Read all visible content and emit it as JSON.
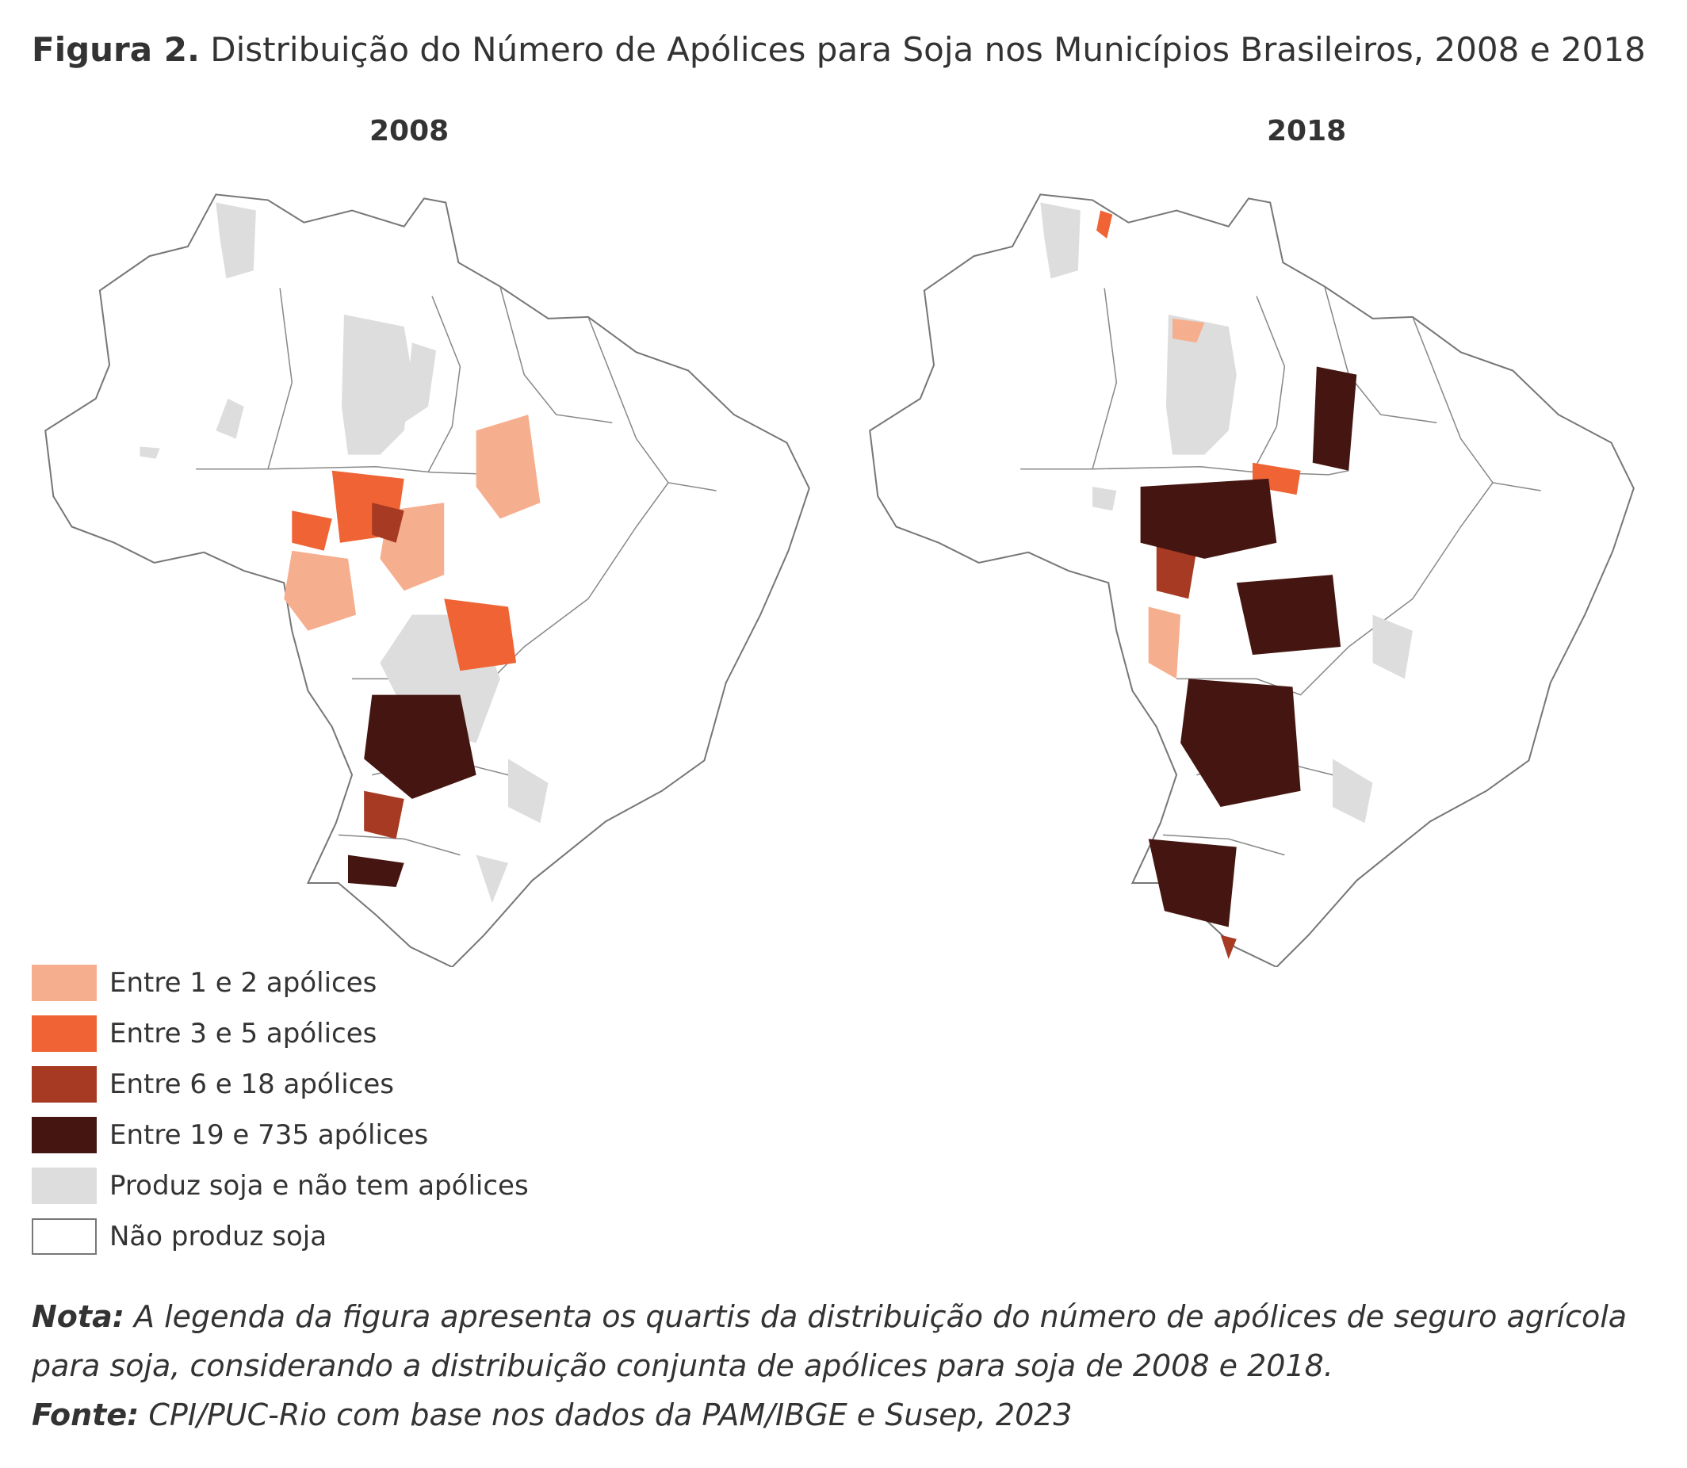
{
  "figure": {
    "title_bold": "Figura 2.",
    "title_text": " Distribuição do Número de Apólices para Soja nos Municípios Brasileiros, 2008 e 2018"
  },
  "colors": {
    "c1": "#f6af8e",
    "c2": "#ef6335",
    "c3": "#a63a22",
    "c4": "#451611",
    "gray": "#dddddd",
    "none": "#ffffff",
    "border": "#777777"
  },
  "maps": [
    {
      "year": "2008"
    },
    {
      "year": "2018"
    }
  ],
  "legend": [
    {
      "label": "Entre 1 e 2 apólices",
      "color": "#f6af8e"
    },
    {
      "label": "Entre 3 e 5 apólices",
      "color": "#ef6335"
    },
    {
      "label": "Entre 6 e 18 apólices",
      "color": "#a63a22"
    },
    {
      "label": "Entre 19 e 735 apólices",
      "color": "#451611"
    },
    {
      "label": "Produz soja e não tem apólices",
      "color": "#dddddd"
    },
    {
      "label": "Não produz soja",
      "color": "#ffffff"
    }
  ],
  "note": {
    "label": "Nota:",
    "text": " A legenda da figura apresenta os quartis da distribuição do número de apólices de seguro agrícola para soja, considerando a distribuição conjunta de apólices para soja de 2008 e 2018."
  },
  "source": {
    "label": "Fonte:",
    "text": " CPI/PUC-Rio com base nos dados da PAM/IBGE e Susep, 2023"
  }
}
